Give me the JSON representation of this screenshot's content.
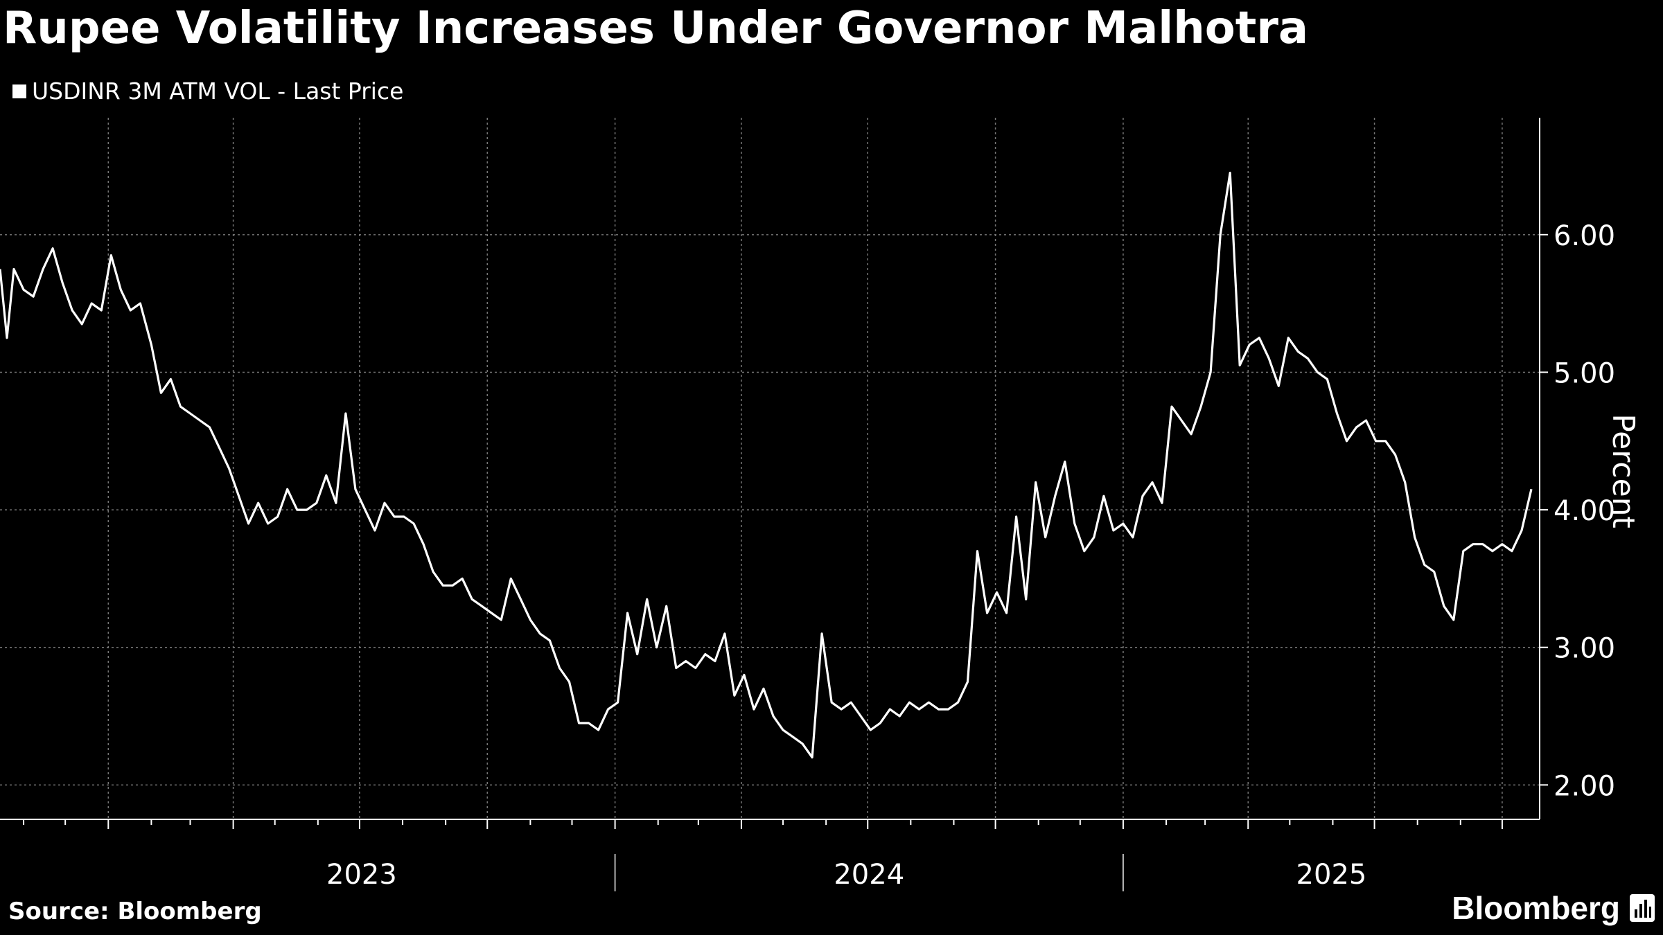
{
  "title": "Rupee Volatility Increases Under Governor Malhotra",
  "legend": {
    "label": "USDINR 3M ATM VOL - Last Price",
    "color": "#ffffff"
  },
  "source": "Source: Bloomberg",
  "brand": "Bloomberg",
  "colors": {
    "background": "#000000",
    "line": "#ffffff",
    "grid": "#777777"
  },
  "chart_data": {
    "type": "line",
    "title": "Rupee Volatility Increases Under Governor Malhotra",
    "ylabel": "Percent",
    "xlabel": "",
    "ylim": [
      1.75,
      6.85
    ],
    "y_ticks": [
      "2.00",
      "3.00",
      "4.00",
      "5.00",
      "6.00"
    ],
    "x_ticks": [
      "2023",
      "2024",
      "2025"
    ],
    "xlim": [
      "2022-10-15",
      "2025-10-28"
    ],
    "grid": true,
    "legend_position": "top-left",
    "series": [
      {
        "name": "USDINR 3M ATM VOL - Last Price",
        "x": [
          "2022-10-15",
          "2022-10-20",
          "2022-10-25",
          "2022-11-01",
          "2022-11-08",
          "2022-11-15",
          "2022-11-22",
          "2022-11-29",
          "2022-12-06",
          "2022-12-13",
          "2022-12-20",
          "2022-12-27",
          "2023-01-03",
          "2023-01-10",
          "2023-01-17",
          "2023-01-24",
          "2023-02-01",
          "2023-02-08",
          "2023-02-15",
          "2023-02-22",
          "2023-03-01",
          "2023-03-08",
          "2023-03-15",
          "2023-03-22",
          "2023-03-29",
          "2023-04-05",
          "2023-04-12",
          "2023-04-19",
          "2023-04-26",
          "2023-05-03",
          "2023-05-10",
          "2023-05-17",
          "2023-05-24",
          "2023-05-31",
          "2023-06-07",
          "2023-06-14",
          "2023-06-21",
          "2023-06-28",
          "2023-07-05",
          "2023-07-12",
          "2023-07-19",
          "2023-07-26",
          "2023-08-02",
          "2023-08-09",
          "2023-08-16",
          "2023-08-23",
          "2023-08-30",
          "2023-09-06",
          "2023-09-13",
          "2023-09-20",
          "2023-09-27",
          "2023-10-04",
          "2023-10-11",
          "2023-10-18",
          "2023-10-25",
          "2023-11-01",
          "2023-11-08",
          "2023-11-15",
          "2023-11-22",
          "2023-11-29",
          "2023-12-06",
          "2023-12-13",
          "2023-12-20",
          "2023-12-27",
          "2024-01-03",
          "2024-01-10",
          "2024-01-17",
          "2024-01-24",
          "2024-01-31",
          "2024-02-07",
          "2024-02-14",
          "2024-02-21",
          "2024-02-28",
          "2024-03-06",
          "2024-03-13",
          "2024-03-20",
          "2024-03-27",
          "2024-04-03",
          "2024-04-10",
          "2024-04-17",
          "2024-04-24",
          "2024-05-01",
          "2024-05-08",
          "2024-05-15",
          "2024-05-22",
          "2024-05-29",
          "2024-06-05",
          "2024-06-12",
          "2024-06-19",
          "2024-06-26",
          "2024-07-03",
          "2024-07-10",
          "2024-07-17",
          "2024-07-24",
          "2024-07-31",
          "2024-08-07",
          "2024-08-14",
          "2024-08-21",
          "2024-08-28",
          "2024-09-04",
          "2024-09-11",
          "2024-09-18",
          "2024-09-25",
          "2024-10-02",
          "2024-10-09",
          "2024-10-16",
          "2024-10-23",
          "2024-10-30",
          "2024-11-06",
          "2024-11-13",
          "2024-11-20",
          "2024-11-27",
          "2024-12-04",
          "2024-12-11",
          "2024-12-18",
          "2024-12-25",
          "2025-01-01",
          "2025-01-08",
          "2025-01-15",
          "2025-01-22",
          "2025-01-29",
          "2025-02-05",
          "2025-02-12",
          "2025-02-19",
          "2025-02-26",
          "2025-03-05",
          "2025-03-12",
          "2025-03-19",
          "2025-03-26",
          "2025-04-02",
          "2025-04-09",
          "2025-04-16",
          "2025-04-23",
          "2025-04-30",
          "2025-05-07",
          "2025-05-14",
          "2025-05-21",
          "2025-05-28",
          "2025-06-04",
          "2025-06-11",
          "2025-06-18",
          "2025-06-25",
          "2025-07-02",
          "2025-07-09",
          "2025-07-16",
          "2025-07-23",
          "2025-07-30",
          "2025-08-06",
          "2025-08-13",
          "2025-08-20",
          "2025-08-27",
          "2025-09-03",
          "2025-09-10",
          "2025-09-17",
          "2025-09-24",
          "2025-10-01",
          "2025-10-08",
          "2025-10-15",
          "2025-10-22"
        ],
        "y": [
          5.75,
          5.25,
          5.75,
          5.6,
          5.55,
          5.75,
          5.9,
          5.65,
          5.45,
          5.35,
          5.5,
          5.45,
          5.85,
          5.6,
          5.45,
          5.5,
          5.2,
          4.85,
          4.95,
          4.75,
          4.7,
          4.65,
          4.6,
          4.45,
          4.3,
          4.1,
          3.9,
          4.05,
          3.9,
          3.95,
          4.15,
          4.0,
          4.0,
          4.05,
          4.25,
          4.05,
          4.7,
          4.15,
          4.0,
          3.85,
          4.05,
          3.95,
          3.95,
          3.9,
          3.75,
          3.55,
          3.45,
          3.45,
          3.5,
          3.35,
          3.3,
          3.25,
          3.2,
          3.5,
          3.35,
          3.2,
          3.1,
          3.05,
          2.85,
          2.75,
          2.45,
          2.45,
          2.4,
          2.55,
          2.6,
          3.25,
          2.95,
          3.35,
          3.0,
          3.3,
          2.85,
          2.9,
          2.85,
          2.95,
          2.9,
          3.1,
          2.65,
          2.8,
          2.55,
          2.7,
          2.5,
          2.4,
          2.35,
          2.3,
          2.2,
          3.1,
          2.6,
          2.55,
          2.6,
          2.5,
          2.4,
          2.45,
          2.55,
          2.5,
          2.6,
          2.55,
          2.6,
          2.55,
          2.55,
          2.6,
          2.75,
          3.7,
          3.25,
          3.4,
          3.25,
          3.95,
          3.35,
          4.2,
          3.8,
          4.1,
          4.35,
          3.9,
          3.7,
          3.8,
          4.1,
          3.85,
          3.9,
          3.8,
          4.1,
          4.2,
          4.05,
          4.75,
          4.65,
          4.55,
          4.75,
          5.0,
          6.0,
          6.45,
          5.05,
          5.2,
          5.25,
          5.1,
          4.9,
          5.25,
          5.15,
          5.1,
          5.0,
          4.95,
          4.7,
          4.5,
          4.6,
          4.65,
          4.5,
          4.5,
          4.4,
          4.2,
          3.8,
          3.6,
          3.55,
          3.3,
          3.2,
          3.7,
          3.75,
          3.75,
          3.7,
          3.75,
          3.7,
          3.85,
          4.15
        ]
      }
    ]
  }
}
